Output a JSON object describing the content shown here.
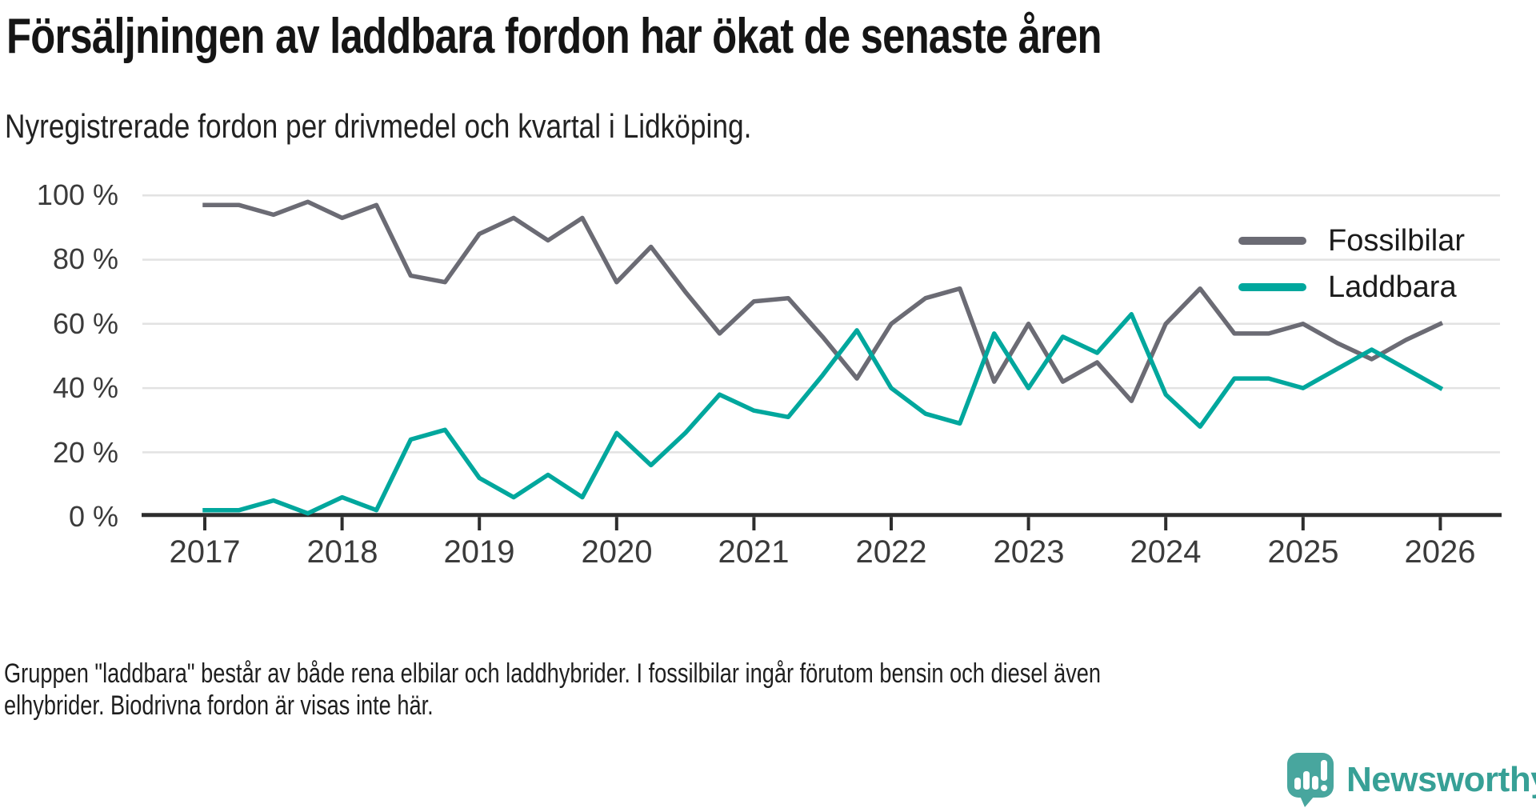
{
  "chart_data": {
    "type": "line",
    "title": "Försäljningen av laddbara fordon har ökat de senaste åren",
    "subtitle": "Nyregistrerade fordon per drivmedel och kvartal i Lidköping.",
    "unit": "%",
    "ylim": [
      0,
      100
    ],
    "grid": true,
    "legend_position": "top-right",
    "x_interval": "quarter",
    "x_tick_labels": [
      "2017",
      "2018",
      "2019",
      "2020",
      "2021",
      "2022",
      "2023",
      "2024",
      "2025",
      "2026"
    ],
    "y_tick_labels": [
      "100 %",
      "80 %",
      "60 %",
      "40 %",
      "20 %",
      "0 %"
    ],
    "quarters": [
      "2017 Q1",
      "2017 Q2",
      "2017 Q3",
      "2017 Q4",
      "2018 Q1",
      "2018 Q2",
      "2018 Q3",
      "2018 Q4",
      "2019 Q1",
      "2019 Q2",
      "2019 Q3",
      "2019 Q4",
      "2020 Q1",
      "2020 Q2",
      "2020 Q3",
      "2020 Q4",
      "2021 Q1",
      "2021 Q2",
      "2021 Q3",
      "2021 Q4",
      "2022 Q1",
      "2022 Q2",
      "2022 Q3",
      "2022 Q4",
      "2023 Q1",
      "2023 Q2",
      "2023 Q3",
      "2023 Q4",
      "2024 Q1",
      "2024 Q2",
      "2024 Q3",
      "2024 Q4",
      "2025 Q1",
      "2025 Q2",
      "2025 Q3",
      "2025 Q4",
      "2026 Q1"
    ],
    "series": [
      {
        "name": "Fossilbilar",
        "color": "#6b6b74",
        "values": [
          97,
          97,
          94,
          98,
          93,
          97,
          75,
          73,
          88,
          93,
          86,
          93,
          73,
          84,
          70,
          57,
          67,
          68,
          56,
          43,
          60,
          68,
          71,
          42,
          60,
          42,
          48,
          36,
          60,
          71,
          57,
          57,
          60,
          54,
          49,
          55,
          60
        ]
      },
      {
        "name": "Laddbara",
        "color": "#00a79d",
        "values": [
          2,
          2,
          5,
          1,
          6,
          2,
          24,
          27,
          12,
          6,
          13,
          6,
          26,
          16,
          26,
          38,
          33,
          31,
          44,
          58,
          40,
          32,
          29,
          57,
          40,
          56,
          51,
          63,
          38,
          28,
          43,
          43,
          40,
          46,
          52,
          46,
          40
        ]
      }
    ]
  },
  "footer": {
    "line1": "Gruppen \"laddbara\" består av både rena elbilar och laddhybrider. I fossilbilar ingår förutom bensin och diesel även",
    "line2": "elhybrider. Biodrivna fordon är visas inte här."
  },
  "logo": {
    "name": "Newsworthy",
    "icon": "newsworthy-speech-bubble-chart-icon",
    "icon_color": "#48a69e",
    "text_color": "#37a096"
  }
}
